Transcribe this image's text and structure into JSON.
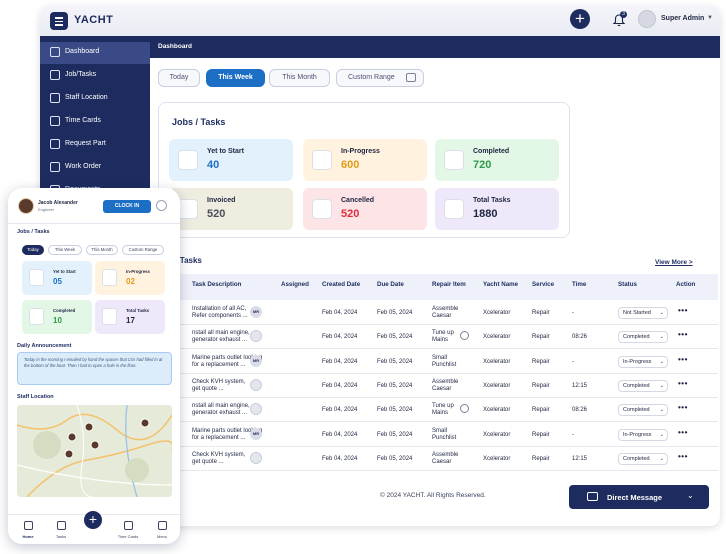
{
  "app": {
    "brand": "YACHT",
    "user_name": "Super Admin",
    "notification_count": "3"
  },
  "sidebar": {
    "items": [
      {
        "label": "Dashboard",
        "icon": "dashboard-icon"
      },
      {
        "label": "Job/Tasks",
        "icon": "briefcase-icon"
      },
      {
        "label": "Staff Location",
        "icon": "location-pin-icon"
      },
      {
        "label": "Time Cards",
        "icon": "card-icon"
      },
      {
        "label": "Request Part",
        "icon": "cart-icon"
      },
      {
        "label": "Work Order",
        "icon": "order-icon"
      },
      {
        "label": "Documents",
        "icon": "document-icon"
      }
    ]
  },
  "breadcrumb": "Dashboard",
  "tabs": [
    "Today",
    "This Week",
    "This Month",
    "Custom Range"
  ],
  "jobs": {
    "title": "Jobs / Tasks",
    "stats": [
      {
        "label": "Yet to Start",
        "value": "40",
        "bg": "#e3f1fd",
        "color": "#1c6fc4"
      },
      {
        "label": "In-Progress",
        "value": "600",
        "bg": "#fff3df",
        "color": "#e29a1a"
      },
      {
        "label": "Completed",
        "value": "720",
        "bg": "#e2f7e6",
        "color": "#2e9b47"
      },
      {
        "label": "Invoiced",
        "value": "520",
        "bg": "#efeddf",
        "color": "#4a4f5c"
      },
      {
        "label": "Cancelled",
        "value": "520",
        "bg": "#fde4e6",
        "color": "#d9303f"
      },
      {
        "label": "Total Tasks",
        "value": "1880",
        "bg": "#efe7fa",
        "color": "#1f2540"
      }
    ]
  },
  "recent": {
    "title": "nt Tasks",
    "view_more": "View More >",
    "columns": [
      "Task Description",
      "Assigned",
      "Created Date",
      "Due Date",
      "Repair Item",
      "Yacht Name",
      "Service",
      "Time",
      "Status",
      "Action"
    ],
    "rows": [
      {
        "desc": [
          "Installation of all AC,",
          "Refer components ..."
        ],
        "assigned": "MR",
        "created": "Feb 04, 2024",
        "due": "Feb 05, 2024",
        "repair": [
          "Assemble",
          "Caesar"
        ],
        "yacht": "Xcelerator",
        "service": "Repair",
        "time": "-",
        "status": "Not Started",
        "clock": false
      },
      {
        "desc": [
          "nstall all main engine,",
          "generator exhaust ..."
        ],
        "assigned": "",
        "created": "Feb 04, 2024",
        "due": "Feb 05, 2024",
        "repair": [
          "Tune up",
          "Mains"
        ],
        "yacht": "Xcelerator",
        "service": "Repair",
        "time": "08:26",
        "status": "Completed",
        "clock": true
      },
      {
        "desc": [
          "Marine parts outlet looking",
          "for a replacement ..."
        ],
        "assigned": "MR",
        "created": "Feb 04, 2024",
        "due": "Feb 05, 2024",
        "repair": [
          "Small",
          "Punchlist"
        ],
        "yacht": "Xcelerator",
        "service": "Repair",
        "time": "-",
        "status": "In-Progress",
        "clock": false
      },
      {
        "desc": [
          "Check KVH system,",
          "get quote ..."
        ],
        "assigned": "",
        "created": "Feb 04, 2024",
        "due": "Feb 05, 2024",
        "repair": [
          "Assemble",
          "Caesar"
        ],
        "yacht": "Xcelerator",
        "service": "Repair",
        "time": "12:15",
        "status": "Completed",
        "clock": false
      },
      {
        "desc": [
          "nstall all main engine,",
          "generator exhaust ..."
        ],
        "assigned": "",
        "created": "Feb 04, 2024",
        "due": "Feb 05, 2024",
        "repair": [
          "Tune up",
          "Mains"
        ],
        "yacht": "Xcelerator",
        "service": "Repair",
        "time": "08:26",
        "status": "Completed",
        "clock": true
      },
      {
        "desc": [
          "Marine parts outlet looking",
          "for a replacement ..."
        ],
        "assigned": "MR",
        "created": "Feb 04, 2024",
        "due": "Feb 05, 2024",
        "repair": [
          "Small",
          "Punchlist"
        ],
        "yacht": "Xcelerator",
        "service": "Repair",
        "time": "-",
        "status": "In-Progress",
        "clock": false
      },
      {
        "desc": [
          "Check KVH system,",
          "get quote ..."
        ],
        "assigned": "",
        "created": "Feb 04, 2024",
        "due": "Feb 05, 2024",
        "repair": [
          "Assemble",
          "Caesar"
        ],
        "yacht": "Xcelerator",
        "service": "Repair",
        "time": "12:15",
        "status": "Completed",
        "clock": false
      }
    ]
  },
  "footer": "© 2024 YACHT. All Rights Reserved.",
  "direct_message": "Direct Message",
  "mobile": {
    "name": "Jacob Alexander",
    "role": "Engineer",
    "clock_in": "CLOCK IN",
    "jobs_title": "Jobs / Tasks",
    "tabs": [
      "Today",
      "This Week",
      "This Month",
      "Custom Range"
    ],
    "stats": [
      {
        "label": "Yet to Start",
        "value": "05",
        "bg": "#e3f1fd",
        "color": "#1c6fc4"
      },
      {
        "label": "In-Progress",
        "value": "02",
        "bg": "#fff3df",
        "color": "#e29a1a"
      },
      {
        "label": "Completed",
        "value": "10",
        "bg": "#e2f7e6",
        "color": "#2e9b47"
      },
      {
        "label": "Total Tasks",
        "value": "17",
        "bg": "#efe7fa",
        "color": "#1f2540"
      }
    ],
    "announcement_title": "Daily Announcement",
    "announcement": "Today in the morning I emailed by hand the spaces that Cris had filled in at the bottom of the boat. Then I had to open a hole in the floor.",
    "staff_location_title": "Staff Location",
    "nav": [
      "Home",
      "Tasks",
      "",
      "Time Cards",
      "Menu"
    ]
  }
}
